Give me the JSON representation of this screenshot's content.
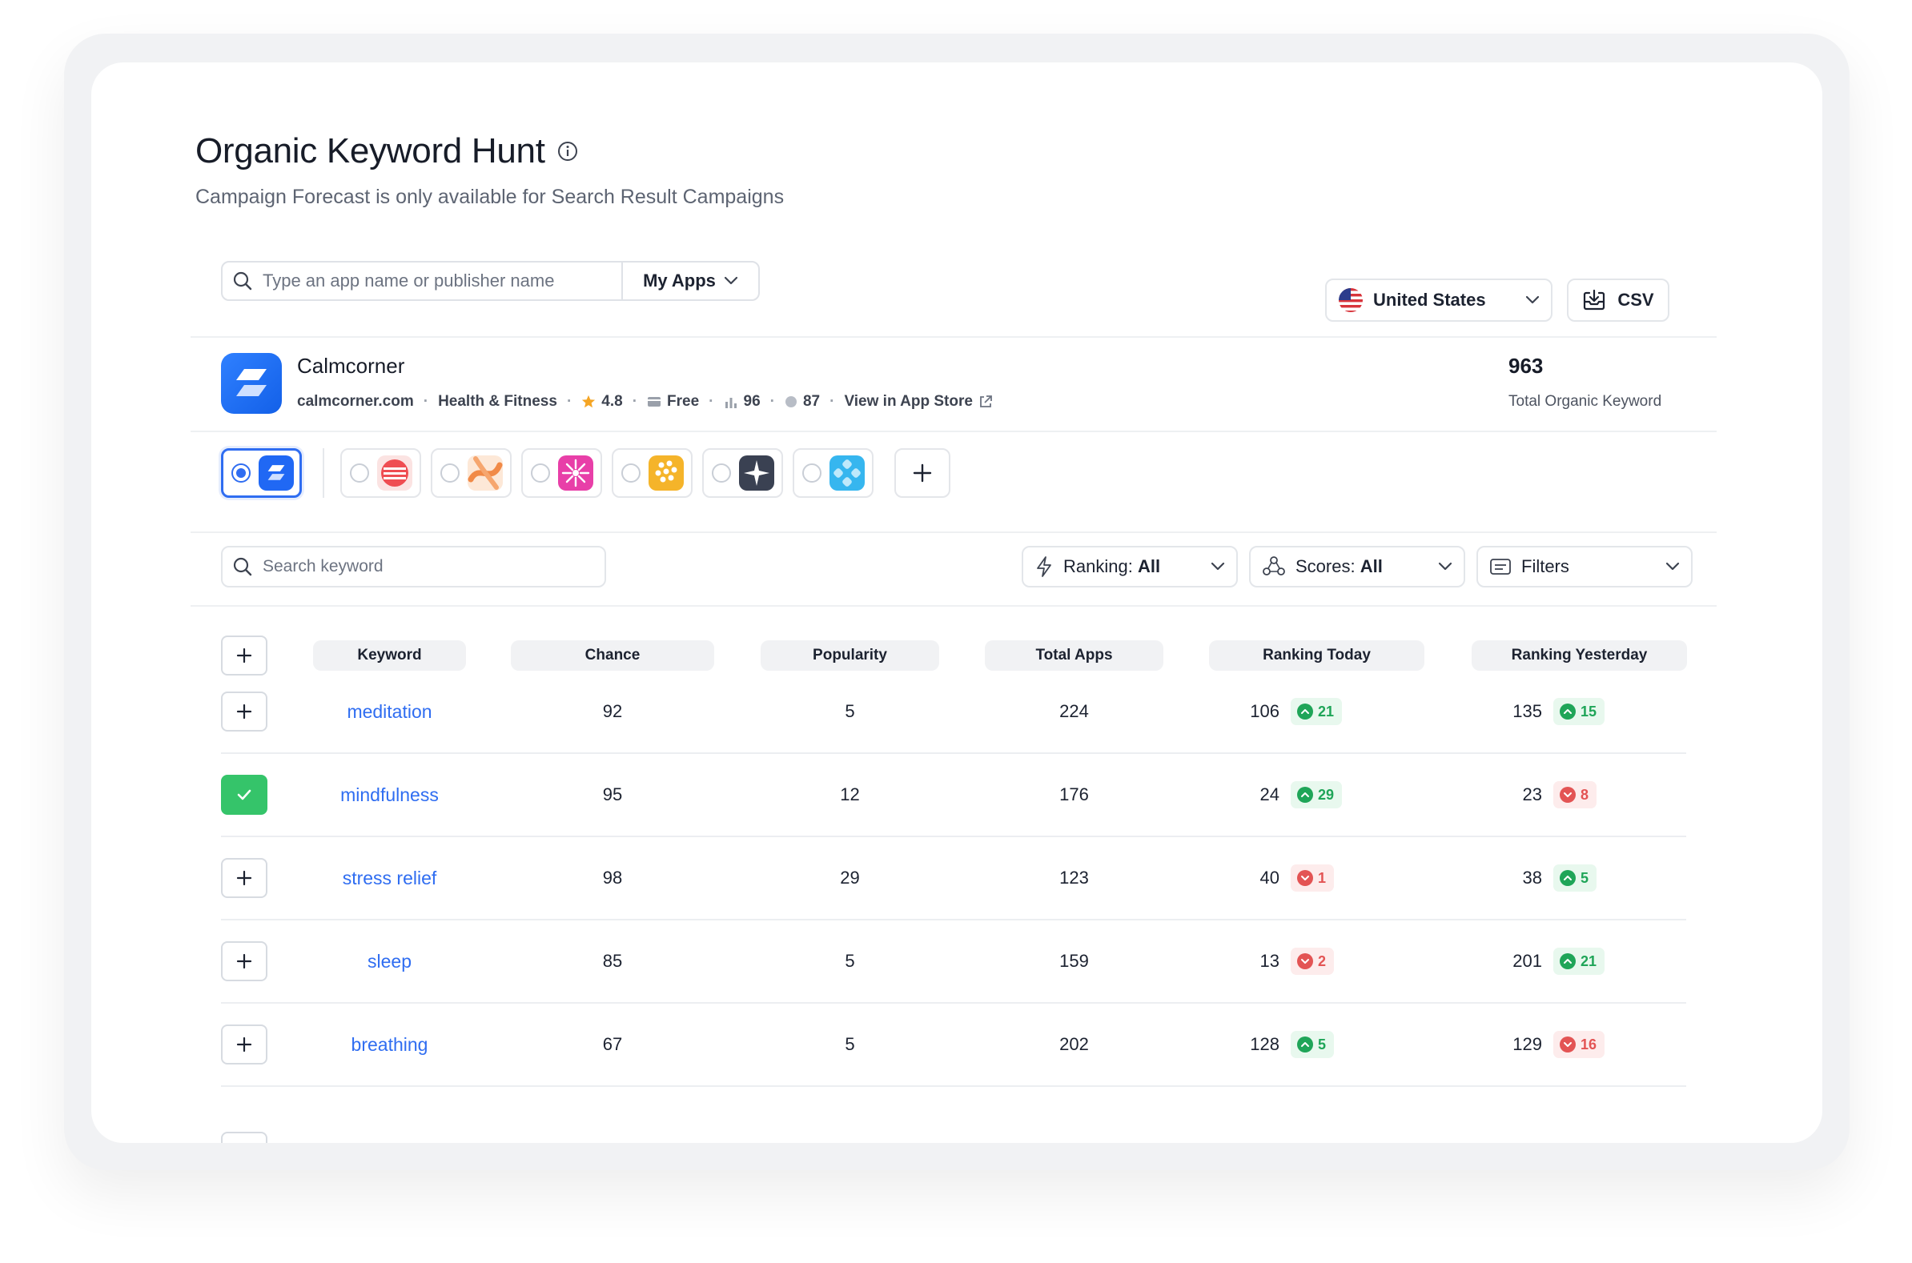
{
  "header": {
    "title": "Organic Keyword Hunt",
    "subtitle": "Campaign Forecast is only available for Search Result Campaigns"
  },
  "app_search": {
    "placeholder": "Type an app name or publisher name",
    "scope_label": "My Apps"
  },
  "country": {
    "label": "United States",
    "flag": "us-flag-icon"
  },
  "export": {
    "csv_label": "CSV"
  },
  "app": {
    "name": "Calmcorner",
    "domain": "calmcorner.com",
    "category": "Health & Fitness",
    "rating": "4.8",
    "price": "Free",
    "stat_1": "96",
    "stat_2": "87",
    "store_link": "View in App Store",
    "total_organic_keyword_count": "963",
    "total_organic_keyword_label": "Total Organic Keyword"
  },
  "competitors": [
    {
      "icon": "calmcorner-icon",
      "selected": true
    },
    {
      "icon": "red-stripes-app-icon",
      "selected": false
    },
    {
      "icon": "orange-swirl-app-icon",
      "selected": false
    },
    {
      "icon": "pink-burst-app-icon",
      "selected": false
    },
    {
      "icon": "yellow-dots-app-icon",
      "selected": false
    },
    {
      "icon": "dark-star-app-icon",
      "selected": false
    },
    {
      "icon": "blue-flower-app-icon",
      "selected": false
    }
  ],
  "toolbar": {
    "keyword_search_placeholder": "Search keyword",
    "ranking_prefix": "Ranking:",
    "ranking_value": "All",
    "scores_prefix": "Scores:",
    "scores_value": "All",
    "filters_label": "Filters"
  },
  "table": {
    "columns": [
      "Keyword",
      "Chance",
      "Popularity",
      "Total Apps",
      "Ranking Today",
      "Ranking Yesterday"
    ],
    "rows": [
      {
        "keyword": "meditation",
        "added": false,
        "chance": "92",
        "popularity": "5",
        "total_apps": "224",
        "rank_today": "106",
        "today_change": "21",
        "today_dir": "up",
        "rank_yesterday": "135",
        "yesterday_change": "15",
        "yesterday_dir": "up"
      },
      {
        "keyword": "mindfulness",
        "added": true,
        "chance": "95",
        "popularity": "12",
        "total_apps": "176",
        "rank_today": "24",
        "today_change": "29",
        "today_dir": "up",
        "rank_yesterday": "23",
        "yesterday_change": "8",
        "yesterday_dir": "down"
      },
      {
        "keyword": "stress relief",
        "added": false,
        "chance": "98",
        "popularity": "29",
        "total_apps": "123",
        "rank_today": "40",
        "today_change": "1",
        "today_dir": "down",
        "rank_yesterday": "38",
        "yesterday_change": "5",
        "yesterday_dir": "up"
      },
      {
        "keyword": "sleep",
        "added": false,
        "chance": "85",
        "popularity": "5",
        "total_apps": "159",
        "rank_today": "13",
        "today_change": "2",
        "today_dir": "down",
        "rank_yesterday": "201",
        "yesterday_change": "21",
        "yesterday_dir": "up"
      },
      {
        "keyword": "breathing",
        "added": false,
        "chance": "67",
        "popularity": "5",
        "total_apps": "202",
        "rank_today": "128",
        "today_change": "5",
        "today_dir": "up",
        "rank_yesterday": "129",
        "yesterday_change": "16",
        "yesterday_dir": "down"
      }
    ]
  },
  "colors": {
    "accent": "#2f6df1",
    "up": "#1fa558",
    "down": "#e35454",
    "checked": "#35c46a"
  }
}
